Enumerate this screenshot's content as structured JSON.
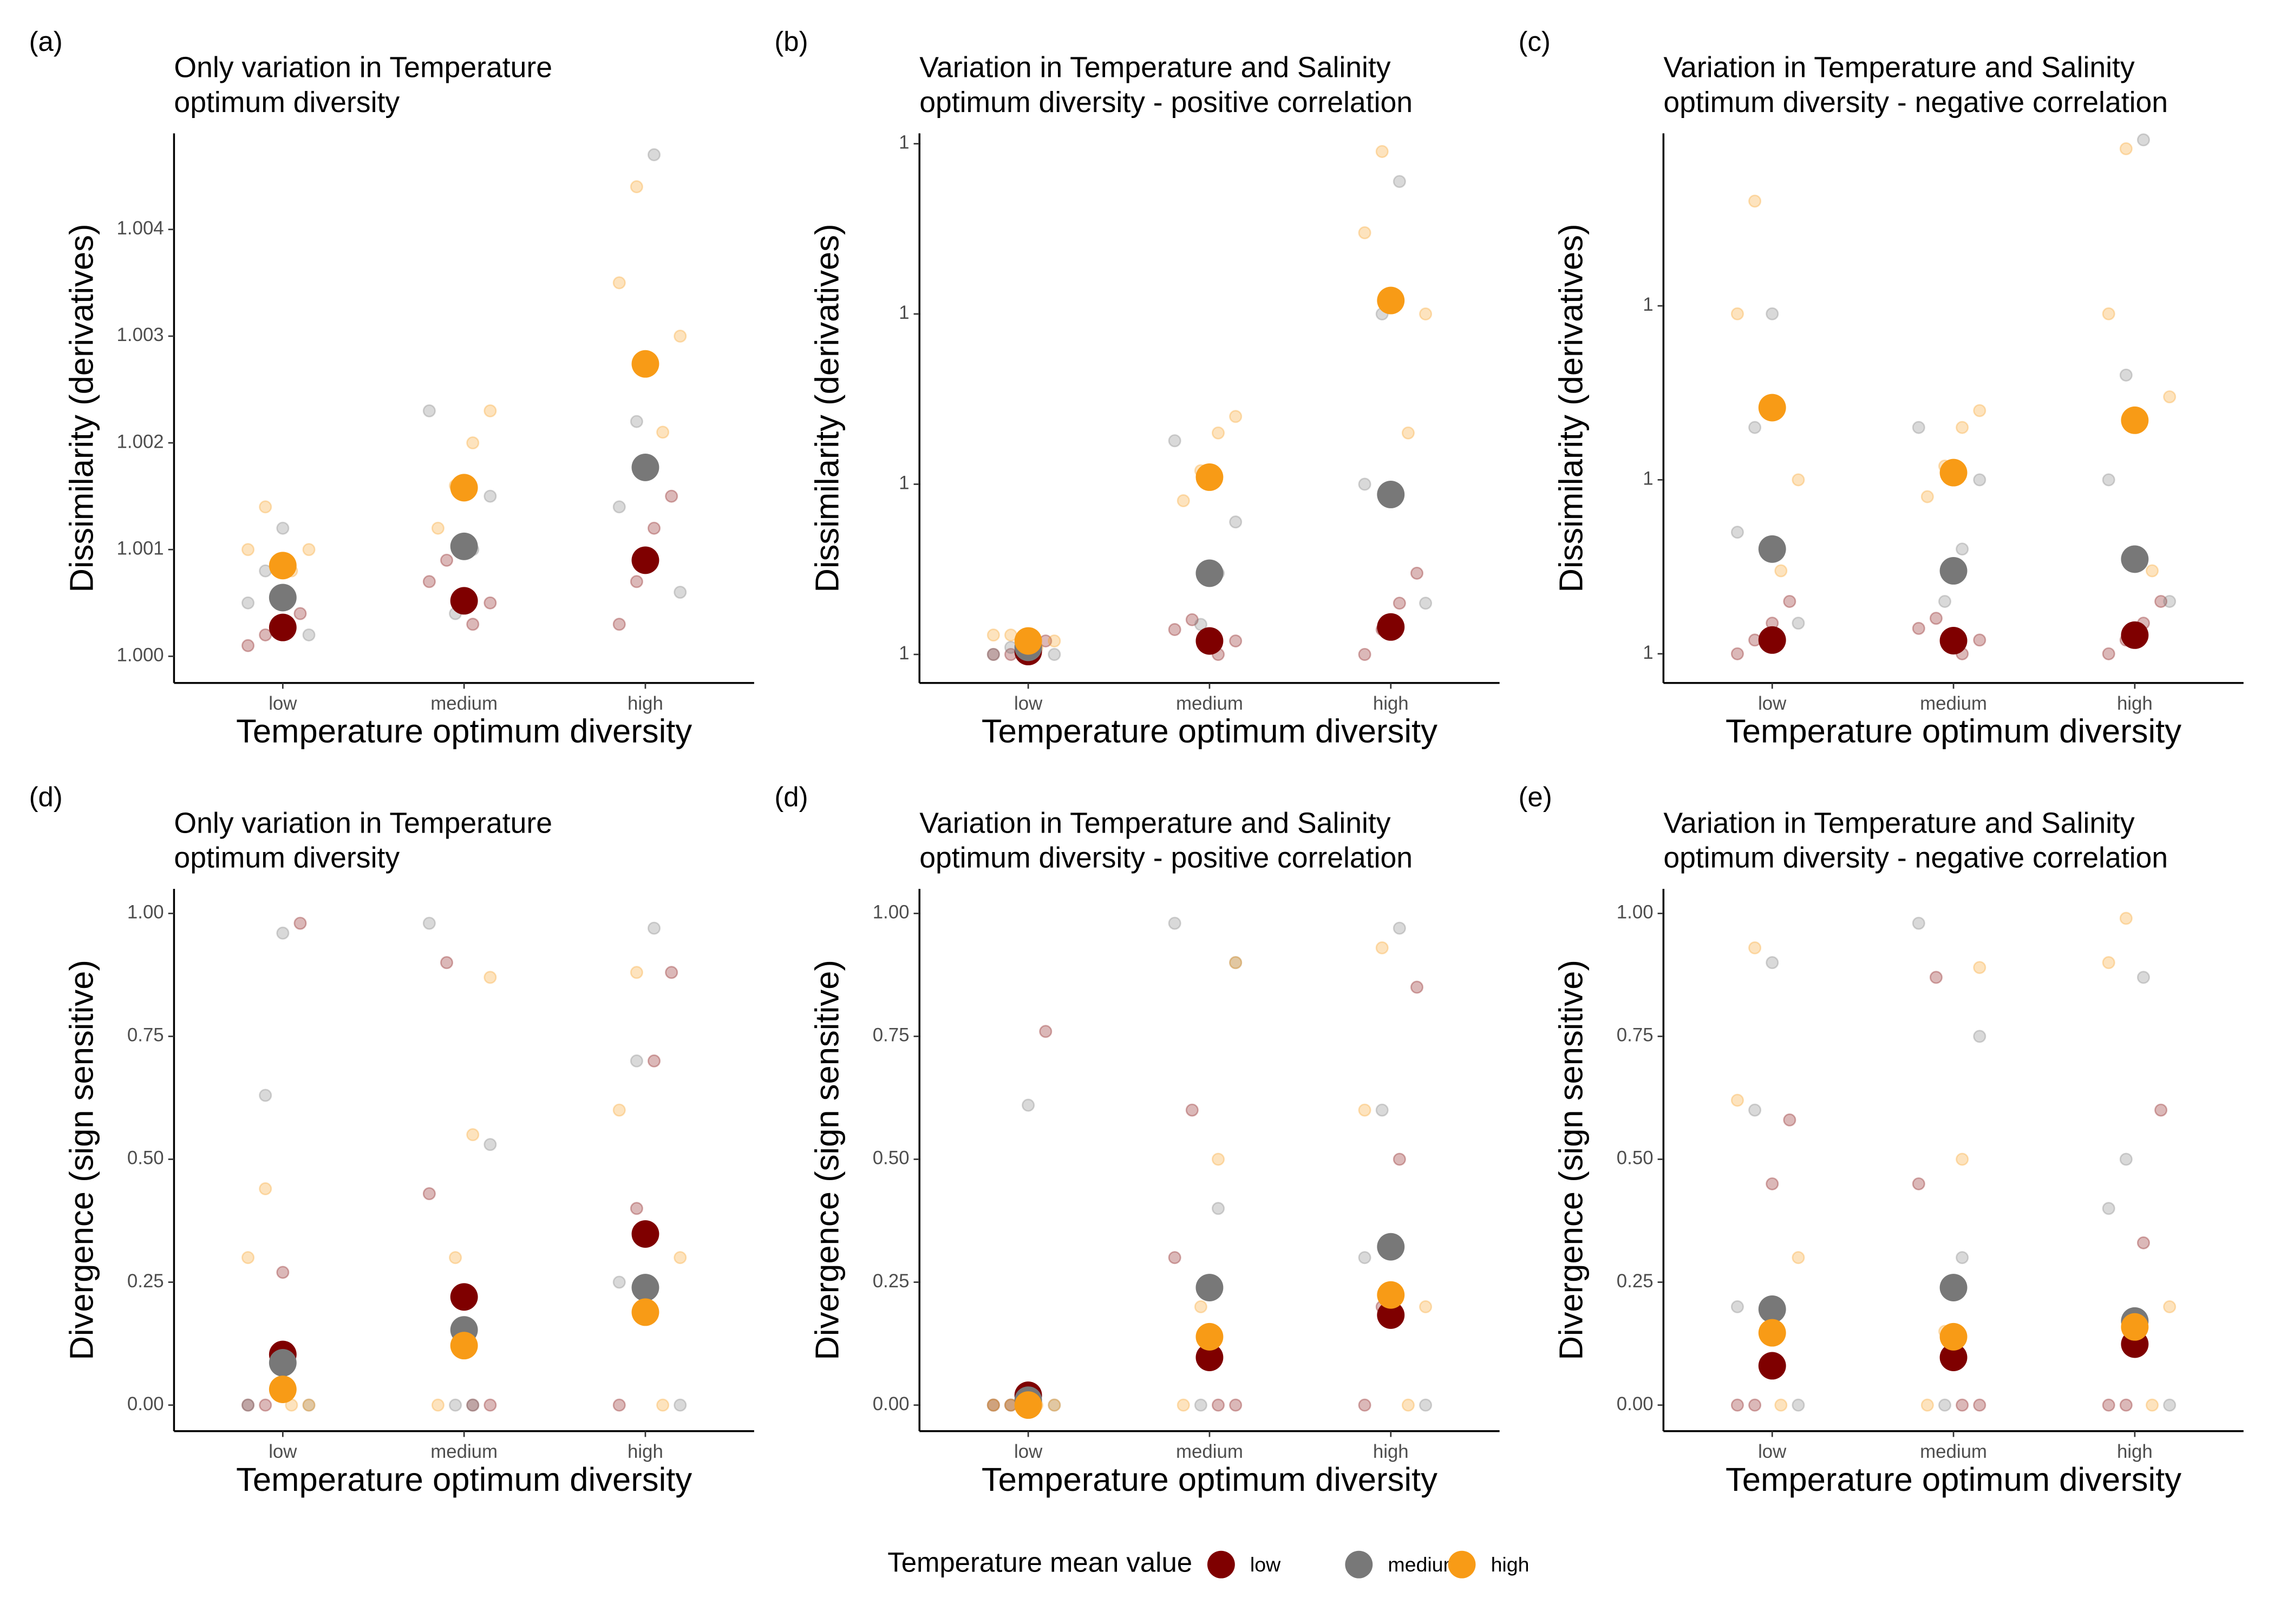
{
  "legend": {
    "title": "Temperature mean value"
  },
  "chart_data": [
    {
      "type": "strip",
      "panel_label": "(a)",
      "title": [
        "Only variation in Temperature",
        " optimum diversity"
      ],
      "x_label": "Temperature optimum diversity",
      "y_label": "Dissimilarity (derivatives)",
      "categories": [
        "low",
        "medium",
        "high"
      ],
      "yscale": "linear",
      "ylim": [
        0.99975,
        1.0049
      ],
      "yticks": [
        {
          "value": 1.0,
          "label": "1.000"
        },
        {
          "value": 1.001,
          "label": "1.001"
        },
        {
          "value": 1.002,
          "label": "1.002"
        },
        {
          "value": 1.003,
          "label": "1.003"
        },
        {
          "value": 1.004,
          "label": "1.004"
        }
      ],
      "series": [
        {
          "name": "low",
          "color": "#7f0000",
          "values": [
            1.00027,
            1.00052,
            1.0009
          ],
          "points": [
            [
              1.0001,
              1.0002,
              1.0003,
              1.0004
            ],
            [
              1.0003,
              1.0005,
              1.0007,
              1.0009
            ],
            [
              1.0003,
              1.0007,
              1.0012,
              1.0015
            ]
          ]
        },
        {
          "name": "medium",
          "color": "#787878",
          "values": [
            1.00055,
            1.00103,
            1.00177
          ],
          "points": [
            [
              1.0002,
              1.0005,
              1.0008,
              1.0012
            ],
            [
              1.0004,
              1.001,
              1.0015,
              1.0023
            ],
            [
              1.0006,
              1.0014,
              1.0022,
              1.0047
            ]
          ]
        },
        {
          "name": "high",
          "color": "#f89b16",
          "values": [
            1.00085,
            1.00158,
            1.00274
          ],
          "points": [
            [
              1.0008,
              1.001,
              1.001,
              1.0014
            ],
            [
              1.0012,
              1.0016,
              1.002,
              1.0023
            ],
            [
              1.0021,
              1.003,
              1.0035,
              1.0044
            ]
          ]
        }
      ]
    },
    {
      "type": "strip",
      "panel_label": "(b)",
      "title": [
        "Variation in Temperature and Salinity",
        "optimum diversity - positive correlation"
      ],
      "x_label": "Temperature optimum diversity",
      "y_label": "Dissimilarity (derivatives)",
      "categories": [
        "low",
        "medium",
        "high"
      ],
      "yscale": "log",
      "ylim": [
        1.0000068,
        1.0115
      ],
      "yticks": [
        {
          "value": 1.00001,
          "label": "1"
        },
        {
          "value": 1.0001,
          "label": "1"
        },
        {
          "value": 1.001,
          "label": "1"
        },
        {
          "value": 1.01,
          "label": "1"
        }
      ],
      "series": [
        {
          "name": "low",
          "color": "#7f0000",
          "values": [
            1.0000104,
            1.000012,
            1.0000145
          ],
          "points": [
            [
              1.00001,
              1.00001,
              1.000011,
              1.000012
            ],
            [
              1.00001,
              1.000012,
              1.000014,
              1.000016
            ],
            [
              1.00001,
              1.000014,
              1.00002,
              1.00003
            ]
          ]
        },
        {
          "name": "medium",
          "color": "#787878",
          "values": [
            1.000011,
            1.00003,
            1.000087
          ],
          "points": [
            [
              1.00001,
              1.00001,
              1.000011,
              1.000012
            ],
            [
              1.000015,
              1.00003,
              1.00006,
              1.00018
            ],
            [
              1.00002,
              1.0001,
              1.001,
              1.006
            ]
          ]
        },
        {
          "name": "high",
          "color": "#f89b16",
          "values": [
            1.000012,
            1.00011,
            1.0012
          ],
          "points": [
            [
              1.000011,
              1.000012,
              1.000013,
              1.000013
            ],
            [
              1.00008,
              1.00012,
              1.0002,
              1.00025
            ],
            [
              1.0002,
              1.001,
              1.003,
              1.009
            ]
          ]
        }
      ]
    },
    {
      "type": "strip",
      "panel_label": "(c)",
      "title": [
        "Variation in Temperature and Salinity",
        "optimum diversity - negative correlation"
      ],
      "x_label": "Temperature optimum diversity",
      "y_label": "Dissimilarity (derivatives)",
      "categories": [
        "low",
        "medium",
        "high"
      ],
      "yscale": "log",
      "ylim": [
        1.0000068,
        1.0098
      ],
      "yticks": [
        {
          "value": 1.00001,
          "label": "1"
        },
        {
          "value": 1.0001,
          "label": "1"
        },
        {
          "value": 1.001,
          "label": "1"
        }
      ],
      "series": [
        {
          "name": "low",
          "color": "#7f0000",
          "values": [
            1.000012,
            1.0000119,
            1.0000128
          ],
          "points": [
            [
              1.00001,
              1.000012,
              1.000015,
              1.00002
            ],
            [
              1.00001,
              1.000012,
              1.000014,
              1.000016
            ],
            [
              1.00001,
              1.000012,
              1.000015,
              1.00002
            ]
          ]
        },
        {
          "name": "medium",
          "color": "#787878",
          "values": [
            1.00004,
            1.00003,
            1.000035
          ],
          "points": [
            [
              1.000015,
              1.00005,
              1.0002,
              1.0009
            ],
            [
              1.00002,
              1.00004,
              1.0001,
              1.0002
            ],
            [
              1.00002,
              1.0001,
              1.0004,
              1.009
            ]
          ]
        },
        {
          "name": "high",
          "color": "#f89b16",
          "values": [
            1.00026,
            1.00011,
            1.00022
          ],
          "points": [
            [
              1.00003,
              1.0001,
              1.0009,
              1.004
            ],
            [
              1.00008,
              1.00012,
              1.0002,
              1.00025
            ],
            [
              1.00003,
              1.0003,
              1.0009,
              1.008
            ]
          ]
        }
      ]
    },
    {
      "type": "strip",
      "panel_label": "(d)",
      "title": [
        "Only variation in Temperature",
        " optimum diversity"
      ],
      "x_label": "Temperature optimum diversity",
      "y_label": "Divergence (sign sensitive)",
      "categories": [
        "low",
        "medium",
        "high"
      ],
      "yscale": "linear",
      "ylim": [
        -0.053,
        1.05
      ],
      "yticks": [
        {
          "value": 0,
          "label": "0.00"
        },
        {
          "value": 0.25,
          "label": "0.25"
        },
        {
          "value": 0.5,
          "label": "0.50"
        },
        {
          "value": 0.75,
          "label": "0.75"
        },
        {
          "value": 1,
          "label": "1.00"
        }
      ],
      "series": [
        {
          "name": "low",
          "color": "#7f0000",
          "values": [
            0.103,
            0.22,
            0.348
          ],
          "points": [
            [
              0,
              0,
              0.27,
              0.98
            ],
            [
              0,
              0,
              0.43,
              0.9
            ],
            [
              0,
              0.4,
              0.7,
              0.88
            ]
          ]
        },
        {
          "name": "medium",
          "color": "#787878",
          "values": [
            0.086,
            0.153,
            0.239
          ],
          "points": [
            [
              0,
              0,
              0.63,
              0.96
            ],
            [
              0,
              0,
              0.53,
              0.98
            ],
            [
              0,
              0.25,
              0.7,
              0.97
            ]
          ]
        },
        {
          "name": "high",
          "color": "#f89b16",
          "values": [
            0.032,
            0.121,
            0.189
          ],
          "points": [
            [
              0,
              0,
              0.3,
              0.44
            ],
            [
              0,
              0.3,
              0.55,
              0.87
            ],
            [
              0,
              0.3,
              0.6,
              0.88
            ]
          ]
        }
      ]
    },
    {
      "type": "strip",
      "panel_label": "(d)",
      "title": [
        "Variation in Temperature and Salinity",
        "optimum diversity - positive correlation"
      ],
      "x_label": "Temperature optimum diversity",
      "y_label": "Divergence (sign sensitive)",
      "categories": [
        "low",
        "medium",
        "high"
      ],
      "yscale": "linear",
      "ylim": [
        -0.053,
        1.05
      ],
      "yticks": [
        {
          "value": 0,
          "label": "0.00"
        },
        {
          "value": 0.25,
          "label": "0.25"
        },
        {
          "value": 0.5,
          "label": "0.50"
        },
        {
          "value": 0.75,
          "label": "0.75"
        },
        {
          "value": 1,
          "label": "1.00"
        }
      ],
      "series": [
        {
          "name": "low",
          "color": "#7f0000",
          "values": [
            0.02,
            0.097,
            0.183
          ],
          "points": [
            [
              0,
              0,
              0,
              0.76
            ],
            [
              0,
              0,
              0.3,
              0.6
            ],
            [
              0,
              0.2,
              0.5,
              0.85
            ]
          ]
        },
        {
          "name": "medium",
          "color": "#787878",
          "values": [
            0.01,
            0.239,
            0.322
          ],
          "points": [
            [
              0,
              0,
              0,
              0.61
            ],
            [
              0,
              0.4,
              0.9,
              0.98
            ],
            [
              0,
              0.3,
              0.6,
              0.97
            ]
          ]
        },
        {
          "name": "high",
          "color": "#f89b16",
          "values": [
            0,
            0.139,
            0.224
          ],
          "points": [
            [
              0,
              0,
              0,
              0
            ],
            [
              0,
              0.2,
              0.5,
              0.9
            ],
            [
              0,
              0.2,
              0.6,
              0.93
            ]
          ]
        }
      ]
    },
    {
      "type": "strip",
      "panel_label": "(e)",
      "title": [
        "Variation in Temperature and Salinity",
        "optimum diversity - negative correlation"
      ],
      "x_label": "Temperature optimum diversity",
      "y_label": "Divergence (sign sensitive)",
      "categories": [
        "low",
        "medium",
        "high"
      ],
      "yscale": "linear",
      "ylim": [
        -0.053,
        1.05
      ],
      "yticks": [
        {
          "value": 0,
          "label": "0.00"
        },
        {
          "value": 0.25,
          "label": "0.25"
        },
        {
          "value": 0.5,
          "label": "0.50"
        },
        {
          "value": 0.75,
          "label": "0.75"
        },
        {
          "value": 1,
          "label": "1.00"
        }
      ],
      "series": [
        {
          "name": "low",
          "color": "#7f0000",
          "values": [
            0.08,
            0.097,
            0.124
          ],
          "points": [
            [
              0,
              0,
              0.45,
              0.58
            ],
            [
              0,
              0,
              0.45,
              0.87
            ],
            [
              0,
              0,
              0.33,
              0.6
            ]
          ]
        },
        {
          "name": "medium",
          "color": "#787878",
          "values": [
            0.195,
            0.239,
            0.171
          ],
          "points": [
            [
              0,
              0.2,
              0.6,
              0.9
            ],
            [
              0,
              0.3,
              0.75,
              0.98
            ],
            [
              0,
              0.4,
              0.5,
              0.87
            ]
          ]
        },
        {
          "name": "high",
          "color": "#f89b16",
          "values": [
            0.147,
            0.139,
            0.159
          ],
          "points": [
            [
              0,
              0.3,
              0.62,
              0.93
            ],
            [
              0,
              0.15,
              0.5,
              0.89
            ],
            [
              0,
              0.2,
              0.9,
              0.99
            ]
          ]
        }
      ]
    }
  ]
}
